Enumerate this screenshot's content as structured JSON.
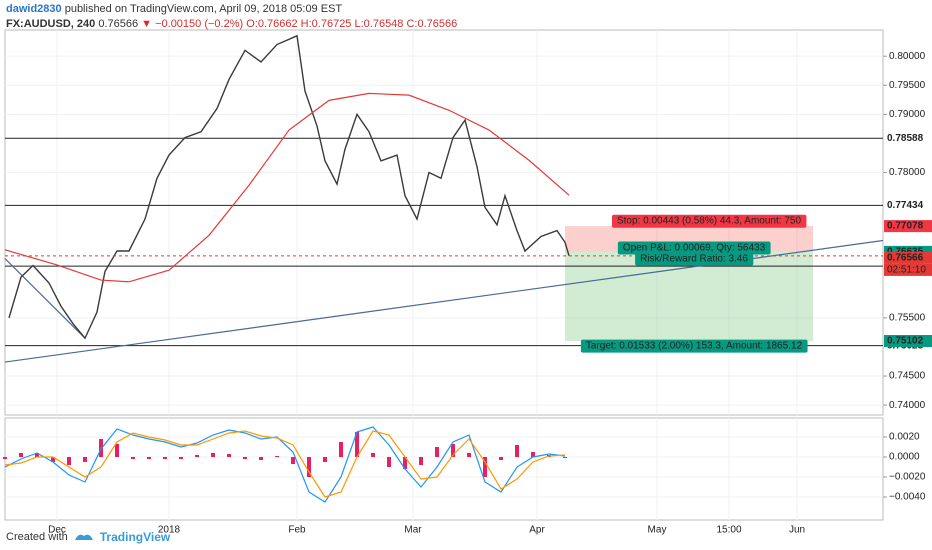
{
  "header": {
    "user": "dawid2830",
    "published": "published on TradingView.com, April 09, 2018 05:09 EST",
    "symbol": "FX:AUDUSD, 240",
    "last": "0.76566",
    "arrow": "▼",
    "change": "−0.00150 (−0.2%)",
    "ohlc": "O:0.76662 H:0.76725 L:0.76548 C:0.76566"
  },
  "footer": {
    "created": "Created with",
    "brand": "TradingView"
  },
  "chart_data": [
    {
      "type": "line",
      "xlim": [
        -13,
        206.5
      ],
      "ylim": [
        0.7383,
        0.8045
      ],
      "xticks": [
        {
          "value": 0,
          "label": "Dec"
        },
        {
          "value": 28,
          "label": "2018"
        },
        {
          "value": 60,
          "label": "Feb"
        },
        {
          "value": 89,
          "label": "Mar"
        },
        {
          "value": 120,
          "label": "Apr"
        },
        {
          "value": 150,
          "label": "May"
        },
        {
          "value": 168,
          "label": "15:00"
        },
        {
          "value": 185,
          "label": "Jun"
        }
      ],
      "yticks": [
        {
          "value": 0.74,
          "label": "0.74000"
        },
        {
          "value": 0.745,
          "label": "0.74500"
        },
        {
          "value": 0.755,
          "label": "0.75500"
        },
        {
          "value": 0.78,
          "label": "0.78000"
        },
        {
          "value": 0.79,
          "label": "0.79000"
        },
        {
          "value": 0.795,
          "label": "0.79500"
        },
        {
          "value": 0.8,
          "label": "0.80000"
        }
      ],
      "grid": true,
      "series": [
        {
          "color": "#3a3a3a",
          "x": [
            -12,
            -9,
            -6,
            -2,
            1,
            4,
            7,
            10,
            12,
            15,
            18,
            22,
            25,
            28,
            32,
            36,
            40,
            43,
            47,
            51,
            55,
            60,
            62,
            65,
            67,
            70,
            72,
            75,
            78,
            81,
            85,
            87,
            90,
            93,
            96,
            99,
            102,
            105,
            107,
            110,
            112,
            115,
            117,
            121,
            125,
            127,
            128
          ],
          "values": [
            0.755,
            0.762,
            0.764,
            0.761,
            0.757,
            0.754,
            0.7515,
            0.756,
            0.763,
            0.7665,
            0.7665,
            0.772,
            0.779,
            0.783,
            0.786,
            0.787,
            0.791,
            0.796,
            0.801,
            0.799,
            0.802,
            0.8035,
            0.794,
            0.788,
            0.782,
            0.778,
            0.784,
            0.79,
            0.787,
            0.782,
            0.783,
            0.776,
            0.772,
            0.78,
            0.779,
            0.786,
            0.789,
            0.781,
            0.774,
            0.771,
            0.776,
            0.77,
            0.7665,
            0.769,
            0.77,
            0.768,
            0.7657
          ]
        },
        {
          "color": "#e53935",
          "x": [
            -13,
            0,
            11,
            18,
            28,
            38,
            48,
            58,
            68,
            78,
            88,
            98,
            108,
            118,
            128
          ],
          "values": [
            0.7667,
            0.7641,
            0.7615,
            0.7612,
            0.7632,
            0.7692,
            0.7778,
            0.7873,
            0.7924,
            0.7936,
            0.7933,
            0.7907,
            0.7873,
            0.7821,
            0.7761
          ]
        }
      ],
      "trendlines": [
        {
          "color": "#4a6a94",
          "x": [
            -13,
            206.5
          ],
          "values": [
            0.7474,
            0.7683
          ]
        },
        {
          "color": "#4a6a94",
          "x": [
            -13,
            7
          ],
          "values": [
            0.7652,
            0.7515
          ]
        }
      ],
      "levels": [
        {
          "value": 0.78588,
          "label": "0.78588"
        },
        {
          "value": 0.77434,
          "label": "0.77434"
        },
        {
          "value": 0.7639,
          "label": "0.76390"
        },
        {
          "value": 0.75023,
          "label": "0.75023"
        }
      ],
      "current": {
        "value": 0.76566,
        "label": "0.76566",
        "countdown": "02:51:10",
        "color": "#e53935"
      },
      "position": {
        "x": [
          127,
          189
        ],
        "stop": {
          "value": 0.77078,
          "label": "0.77078"
        },
        "entry": {
          "value": 0.76635,
          "label": "0.76635"
        },
        "target": {
          "value": 0.75102,
          "label": "0.75102"
        },
        "stop_text": "Stop: 0.00443 (0.58%) 44.3, Amount: 750",
        "pnl_text": "Open P&L: 0.00069, Qty: 56433",
        "ratio_text": "Risk/Reward Ratio: 3.46",
        "target_text": "Target: 0.01533 (2.00%) 153.3, Amount: 1865.12"
      }
    },
    {
      "type": "macd",
      "ylim": [
        -0.0063,
        0.0039
      ],
      "yticks": [
        {
          "value": 0.002,
          "label": "0.0020"
        },
        {
          "value": 0,
          "label": "0.0000"
        },
        {
          "value": -0.002,
          "label": "−0.0020"
        },
        {
          "value": -0.004,
          "label": "−0.0040"
        }
      ],
      "x": [
        -13,
        -9,
        -5,
        -1,
        3,
        7,
        11,
        15,
        19,
        23,
        27,
        31,
        35,
        39,
        43,
        47,
        51,
        55,
        59,
        63,
        67,
        71,
        75,
        79,
        83,
        87,
        91,
        95,
        99,
        103,
        107,
        111,
        115,
        119,
        123,
        127
      ],
      "series": [
        {
          "color": "#2196f3",
          "values": [
            -0.001,
            -0.0002,
            0.0004,
            -0.0005,
            -0.0018,
            -0.0025,
            0.0008,
            0.0028,
            0.0022,
            0.0018,
            0.0015,
            0.001,
            0.0014,
            0.0022,
            0.0027,
            0.0024,
            0.0018,
            0.002,
            0.0005,
            -0.0035,
            -0.0045,
            -0.002,
            0.0025,
            0.003,
            0.0012,
            -0.0012,
            -0.003,
            -0.001,
            0.0015,
            0.0022,
            -0.0025,
            -0.0035,
            -0.001,
            0,
            0.0003,
            0.0001
          ]
        },
        {
          "color": "#ff9800",
          "values": [
            -0.0008,
            -0.0006,
            0,
            0,
            -0.001,
            -0.002,
            -0.001,
            0.0015,
            0.0024,
            0.002,
            0.0017,
            0.0012,
            0.0012,
            0.0018,
            0.0024,
            0.0026,
            0.0021,
            0.0019,
            0.0012,
            -0.0015,
            -0.004,
            -0.0035,
            0,
            0.0026,
            0.0022,
            0,
            -0.0022,
            -0.002,
            0.0002,
            0.0018,
            -0.0005,
            -0.0032,
            -0.0022,
            -0.0005,
            0.0001,
            0.0002
          ]
        }
      ],
      "histogram": {
        "color": "#e91e63",
        "values": [
          -0.0002,
          0.0004,
          0.0004,
          -0.0005,
          -0.0008,
          -0.0005,
          0.0018,
          0.0013,
          -0.0002,
          -0.0002,
          -0.0002,
          -0.0002,
          0.0002,
          0.0004,
          0.0003,
          -0.0002,
          -0.0003,
          0.0001,
          -0.0007,
          -0.002,
          -0.0005,
          0.0015,
          0.0025,
          0.0004,
          -0.001,
          -0.0012,
          -0.0008,
          0.001,
          0.0013,
          0.0004,
          -0.002,
          -0.0003,
          0.0012,
          0.0005,
          0.0002,
          -0.0001
        ]
      }
    }
  ]
}
